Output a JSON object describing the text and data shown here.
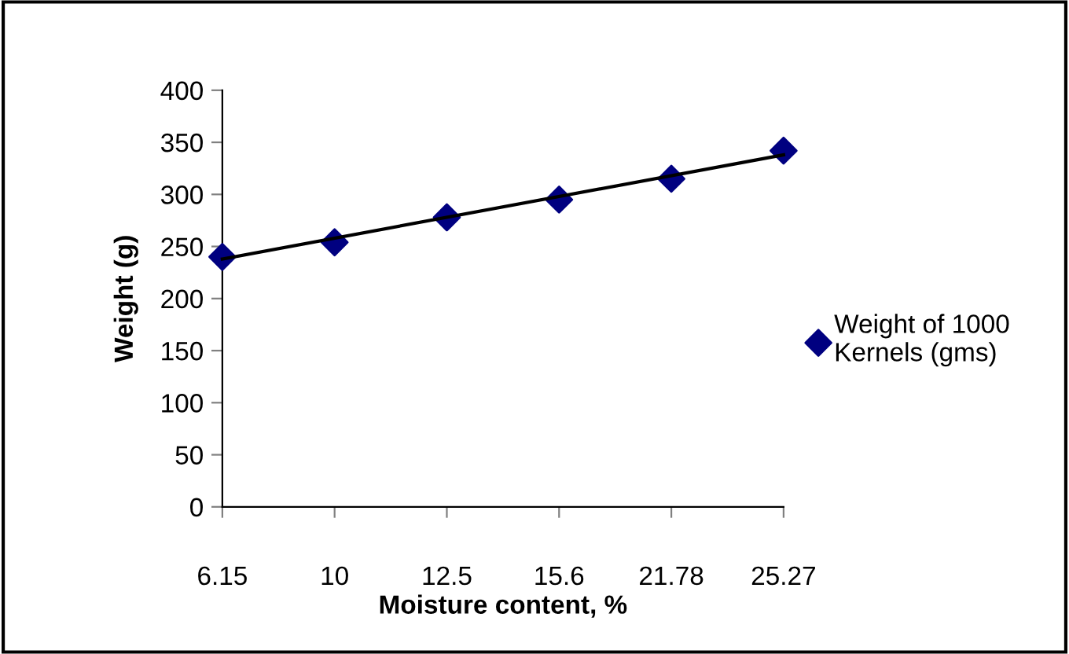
{
  "chart_data": {
    "type": "scatter",
    "xlabel": "Moisture content, %",
    "ylabel": "Weight (g)",
    "categories": [
      "6.15",
      "10",
      "12.5",
      "15.6",
      "21.78",
      "25.27"
    ],
    "series": [
      {
        "name": "Weight of 1000\nKernels (gms)",
        "color": "#000080",
        "marker": "diamond",
        "values": [
          240,
          254,
          278,
          295,
          315,
          342
        ]
      },
      {
        "type": "line",
        "color": "#000000",
        "line_style": "solid",
        "marker": "none",
        "x": [
          "6.15",
          "25.27"
        ],
        "values": [
          238,
          338
        ]
      }
    ],
    "ylim": [
      0,
      400
    ],
    "yticks": [
      0,
      50,
      100,
      150,
      200,
      250,
      300,
      350,
      400
    ],
    "grid": false,
    "legend": "right"
  }
}
